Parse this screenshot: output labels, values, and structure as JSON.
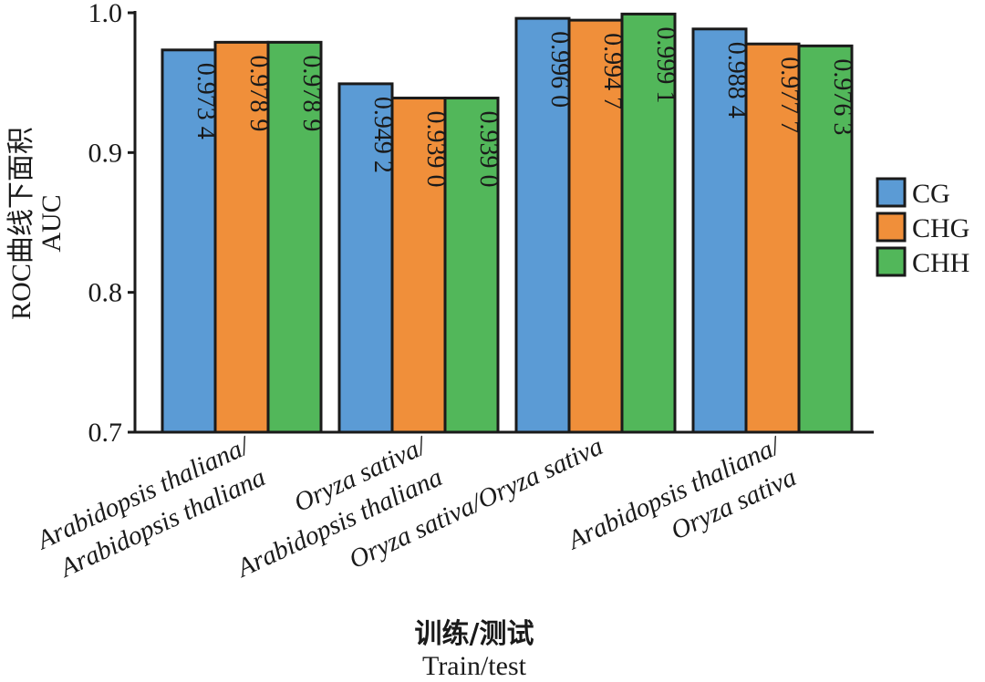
{
  "chart_data": {
    "type": "bar",
    "categories": [
      {
        "line1": "Arabidopsis thaliana/",
        "line2": "Arabidopsis thaliana"
      },
      {
        "line1": "Oryza sativa/",
        "line2": "Arabidopsis thaliana"
      },
      {
        "line1": "Oryza sativa/Oryza sativa",
        "line2": ""
      },
      {
        "line1": "Arabidopsis thaliana/",
        "line2": "Oryza sativa"
      }
    ],
    "series": [
      {
        "name": "CG",
        "color": "#5b9bd5",
        "values": [
          0.9734,
          0.9492,
          0.996,
          0.9884
        ],
        "labels": [
          "0.973 4",
          "0.949 2",
          "0.996 0",
          "0.988 4"
        ]
      },
      {
        "name": "CHG",
        "color": "#f08f3a",
        "values": [
          0.9789,
          0.939,
          0.9947,
          0.9777
        ],
        "labels": [
          "0.978 9",
          "0.939 0",
          "0.994 7",
          "0.977 7"
        ]
      },
      {
        "name": "CHH",
        "color": "#52b75a",
        "values": [
          0.9789,
          0.939,
          0.9991,
          0.9763
        ],
        "labels": [
          "0.978 9",
          "0.939 0",
          "0.999 1",
          "0.976 3"
        ]
      }
    ],
    "ylim": [
      0.7,
      1.0
    ],
    "yticks": [
      0.7,
      0.8,
      0.9,
      1.0
    ],
    "ytick_labels": [
      "0.7",
      "0.8",
      "0.9",
      "1.0"
    ],
    "ylabel_cn": "ROC曲线下面积",
    "ylabel_en": "AUC",
    "xlabel_cn": "训练/测试",
    "xlabel_en": "Train/test",
    "legend_position": "right",
    "grid": false
  }
}
